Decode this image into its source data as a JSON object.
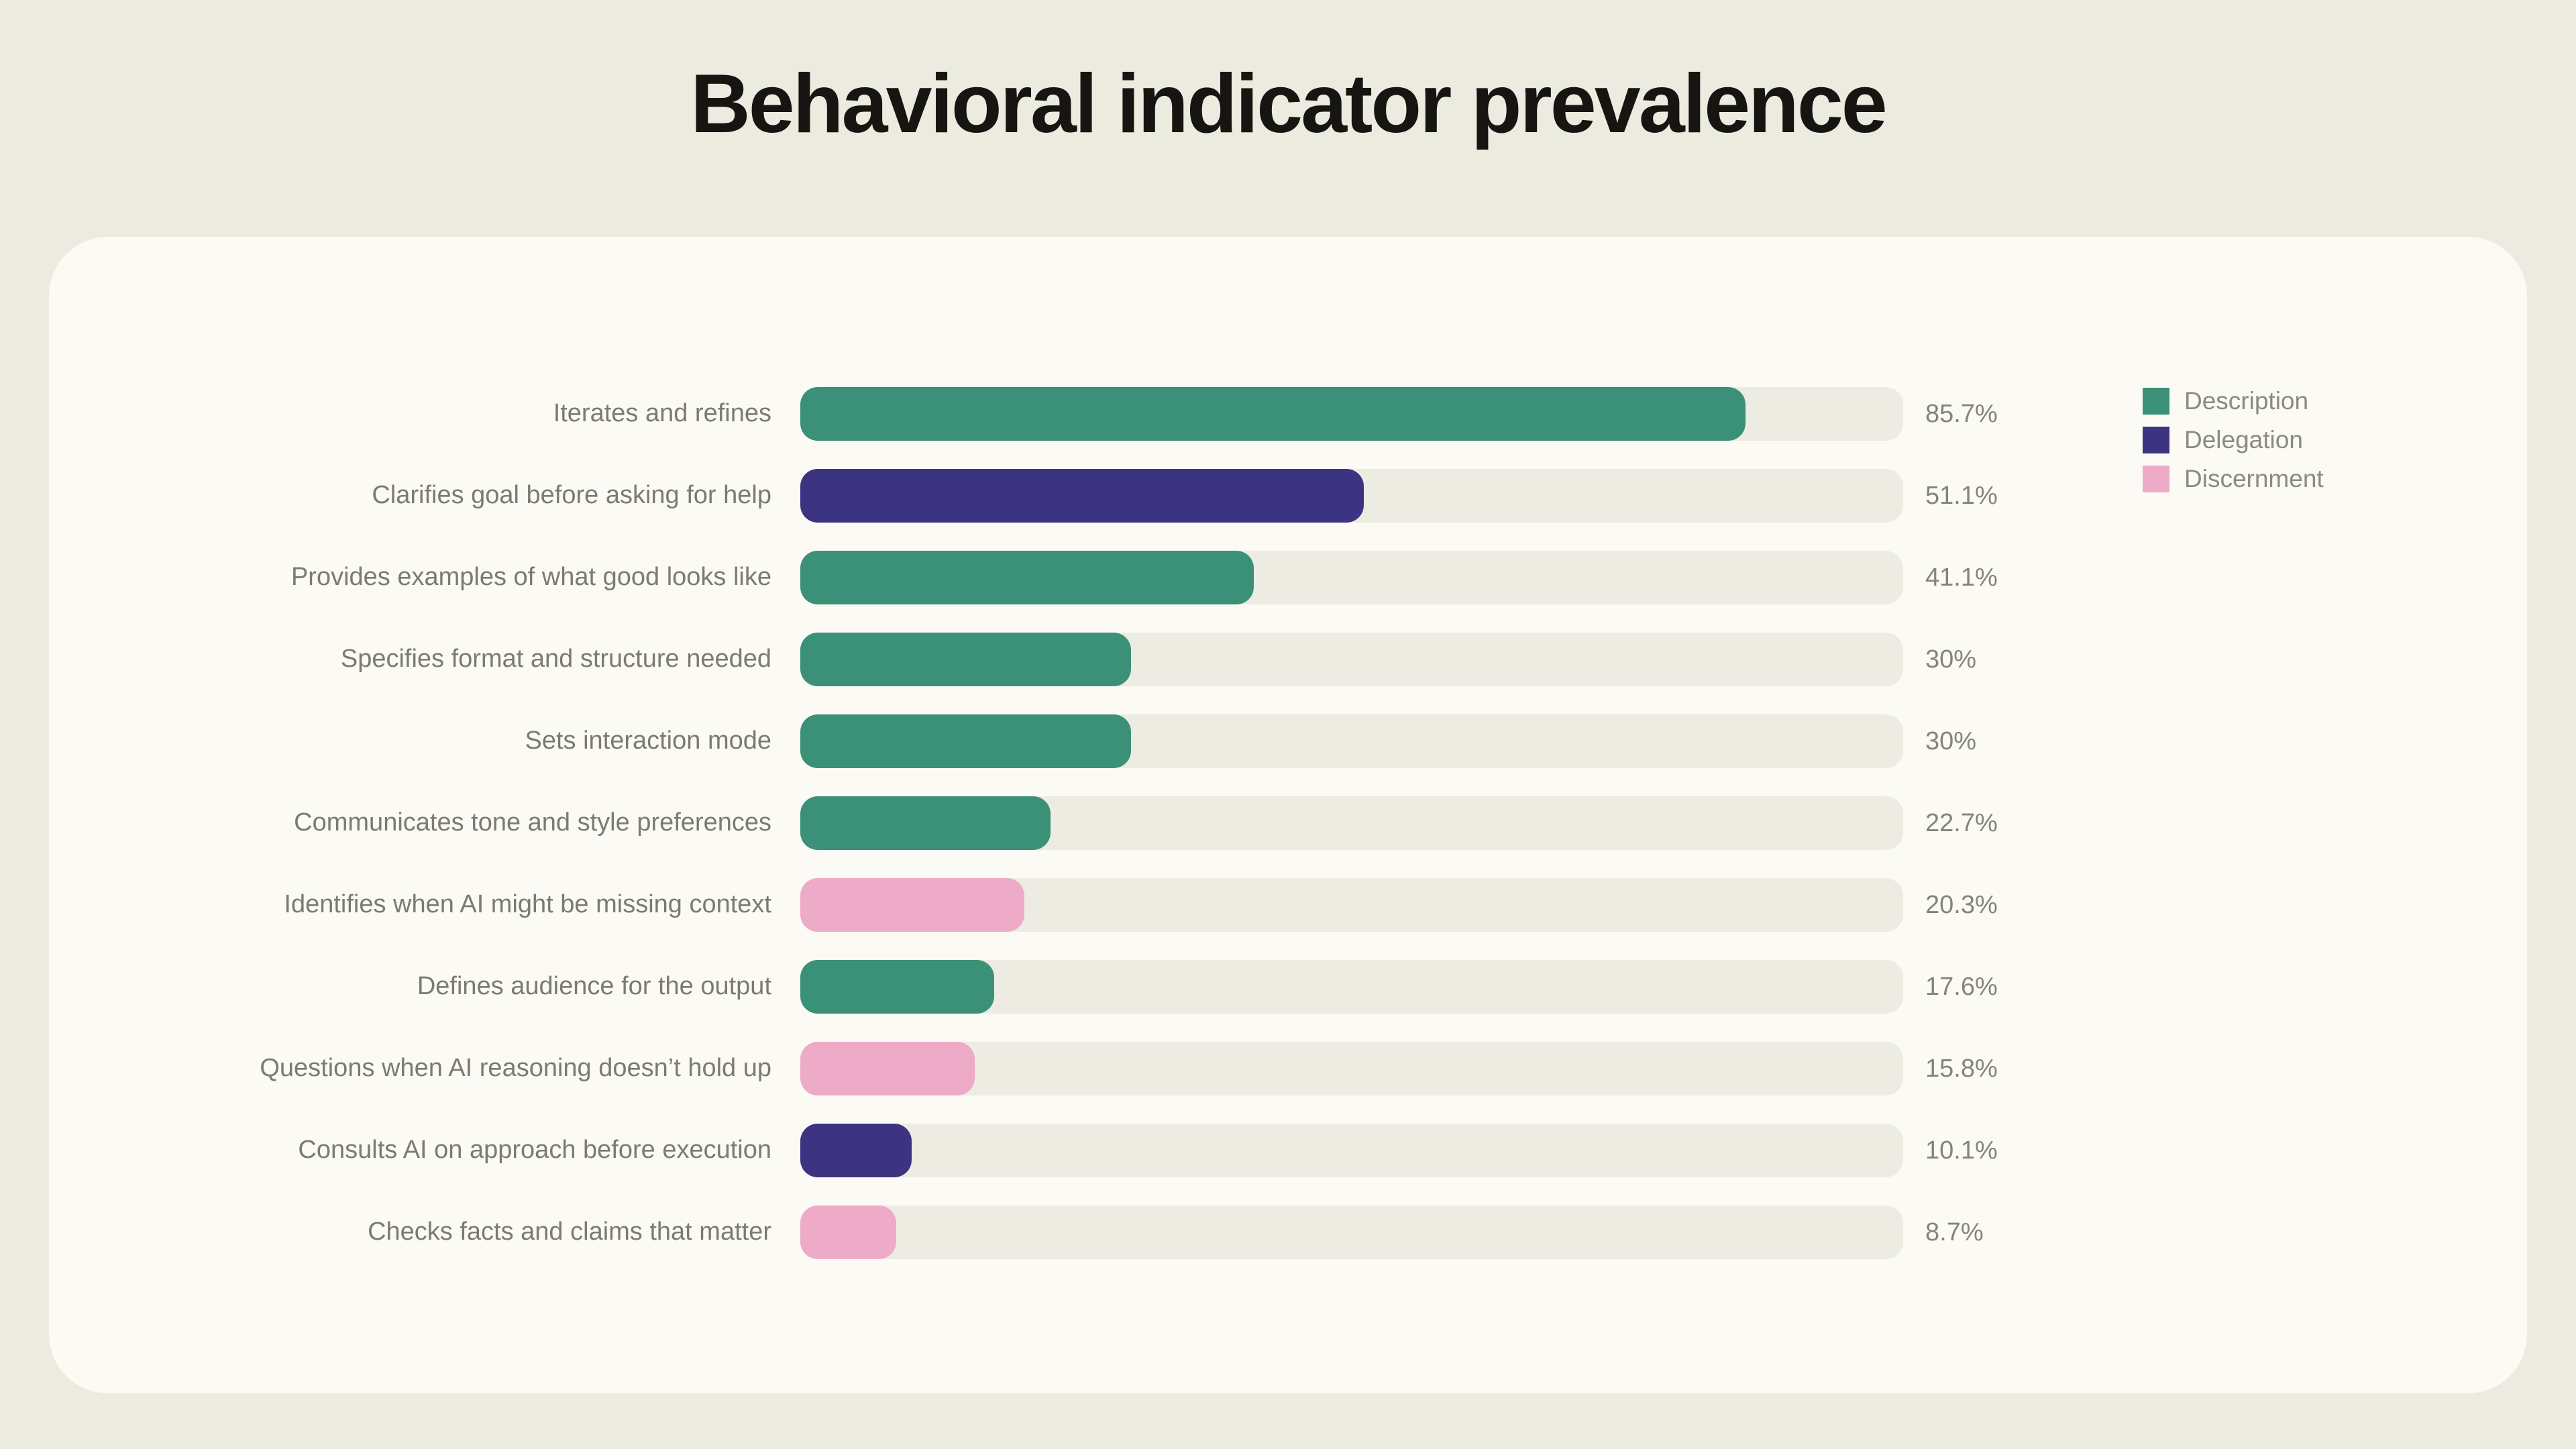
{
  "title": "Behavioral indicator prevalence",
  "chart_data": {
    "type": "bar",
    "orientation": "horizontal",
    "title": "Behavioral indicator prevalence",
    "xlabel": "",
    "ylabel": "",
    "xlim": [
      0,
      100
    ],
    "grid": false,
    "legend_position": "top-right",
    "categories": [
      "Iterates and refines",
      "Clarifies goal before asking for help",
      "Provides examples of what good looks like",
      "Specifies format and structure needed",
      "Sets interaction mode",
      "Communicates tone and style preferences",
      "Identifies when AI might be missing context",
      "Defines audience for the output",
      "Questions when AI reasoning doesn’t hold up",
      "Consults AI on approach before execution",
      "Checks facts and claims that matter"
    ],
    "values": [
      85.7,
      51.1,
      41.1,
      30,
      30,
      22.7,
      20.3,
      17.6,
      15.8,
      10.1,
      8.7
    ],
    "value_labels": [
      "85.7%",
      "51.1%",
      "41.1%",
      "30%",
      "30%",
      "22.7%",
      "20.3%",
      "17.6%",
      "15.8%",
      "10.1%",
      "8.7%"
    ],
    "groups": [
      "Description",
      "Delegation",
      "Description",
      "Description",
      "Description",
      "Description",
      "Discernment",
      "Description",
      "Discernment",
      "Delegation",
      "Discernment"
    ],
    "colors": {
      "Description": "#3a9178",
      "Delegation": "#3d3383",
      "Discernment": "#eeabc7"
    },
    "track_color": "#ecece2"
  },
  "legend": [
    {
      "label": "Description",
      "color": "#3a9178"
    },
    {
      "label": "Delegation",
      "color": "#3d3383"
    },
    {
      "label": "Discernment",
      "color": "#eeabc7"
    }
  ]
}
